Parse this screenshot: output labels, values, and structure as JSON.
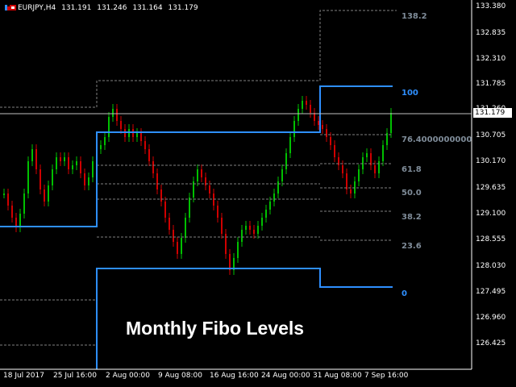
{
  "header": {
    "symbol_tf": "EURJPY,H4",
    "open": "131.191",
    "high": "131.246",
    "low": "131.164",
    "close": "131.179"
  },
  "price_axis": [
    "133.380",
    "132.835",
    "132.310",
    "131.785",
    "131.260",
    "130.705",
    "130.170",
    "129.635",
    "129.100",
    "128.555",
    "128.030",
    "127.495",
    "126.960",
    "126.425"
  ],
  "current_price": "131.179",
  "time_axis": [
    "18 Jul 2017",
    "25 Jul 16:00",
    "2 Aug 00:00",
    "9 Aug 08:00",
    "16 Aug 16:00",
    "24 Aug 00:00",
    "31 Aug 08:00",
    "7 Sep 16:00"
  ],
  "fibo_labels": {
    "l1382": "138.2",
    "l100": "100",
    "l764": "76.4000000000",
    "l618": "61.8",
    "l50": "50.0",
    "l382": "38.2",
    "l236": "23.6",
    "l0": "0"
  },
  "title": "Monthly Fibo Levels",
  "colors": {
    "bull": "#00c000",
    "bear": "#d00000",
    "fibo_main": "#2e8fff",
    "fibo_dash": "#808080",
    "grid": "#ffffff"
  }
}
